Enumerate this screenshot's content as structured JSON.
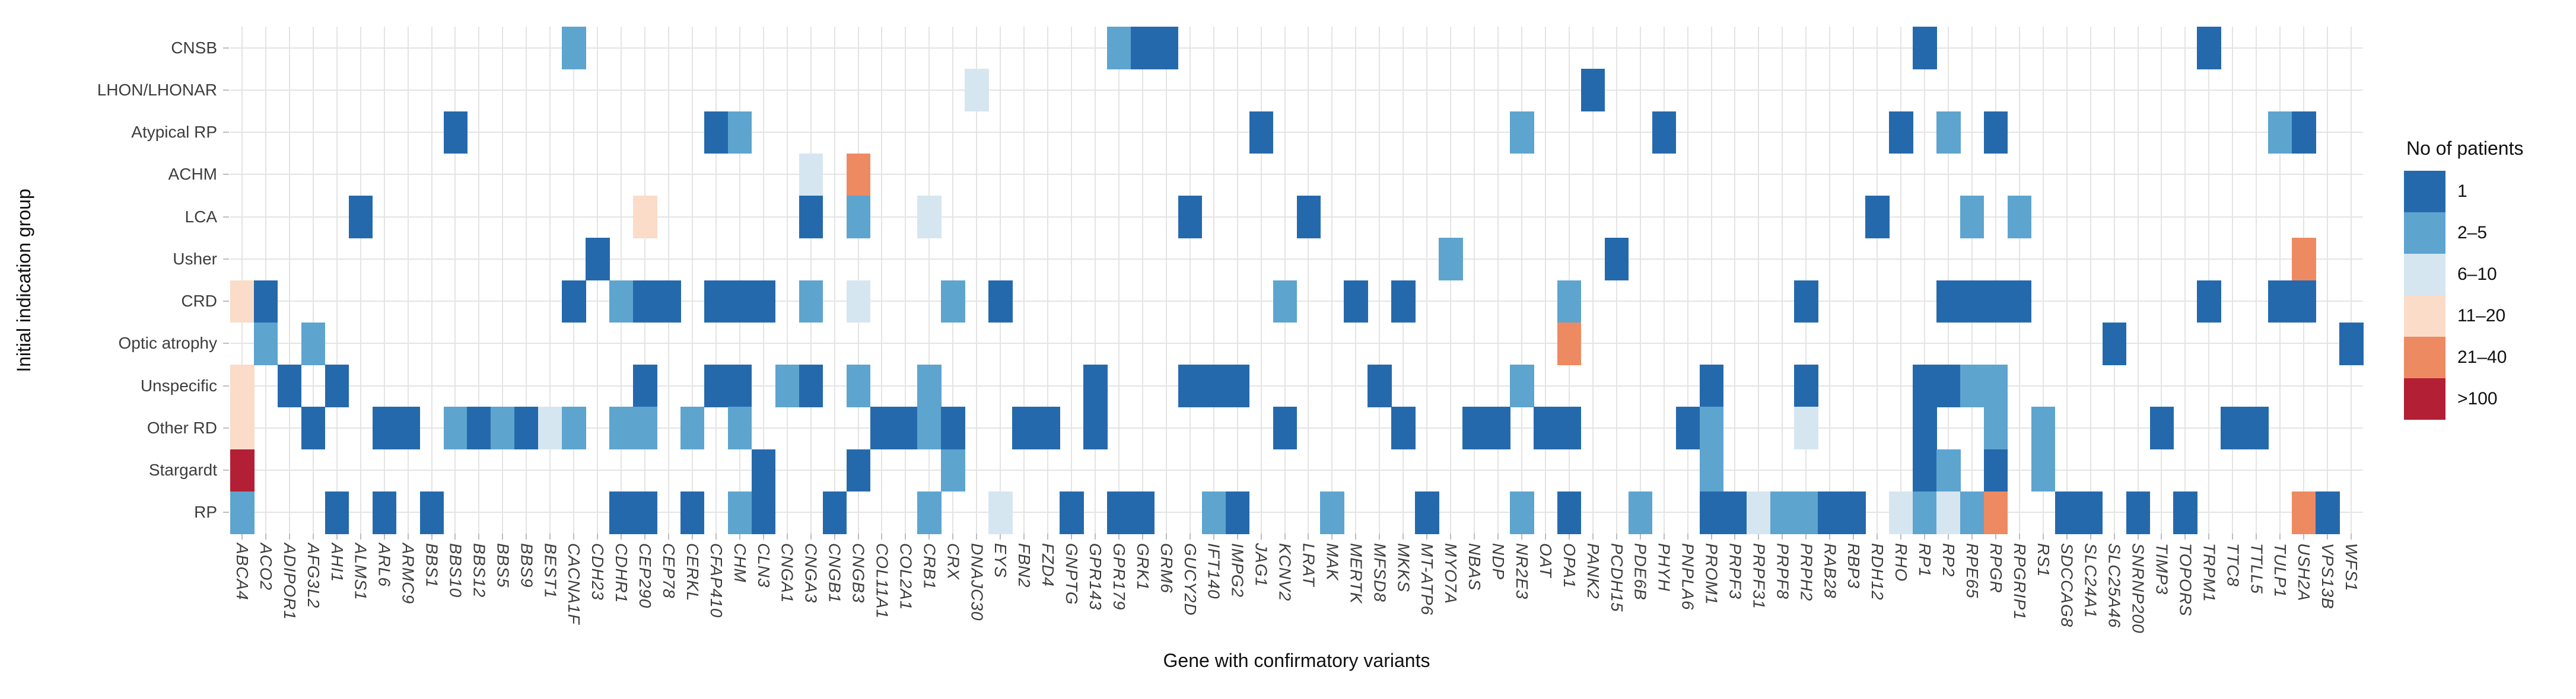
{
  "figure": {
    "xlabel": "Gene with confirmatory variants",
    "ylabel": "Initial indication group",
    "legend_title": "No of patients"
  },
  "chart_data": {
    "type": "heatmap",
    "title": "",
    "xlabel": "Gene with confirmatory variants",
    "ylabel": "Initial indication group",
    "grid": true,
    "legend_position": "right",
    "rows": [
      "CNSB",
      "LHON/LHONAR",
      "Atypical RP",
      "ACHM",
      "LCA",
      "Usher",
      "CRD",
      "Optic atrophy",
      "Unspecific",
      "Other RD",
      "Stargardt",
      "RP"
    ],
    "columns": [
      "ABCA4",
      "ACO2",
      "ADIPOR1",
      "AFG3L2",
      "AHI1",
      "ALMS1",
      "ARL6",
      "ARMC9",
      "BBS1",
      "BBS10",
      "BBS12",
      "BBS5",
      "BBS9",
      "BEST1",
      "CACNA1F",
      "CDH23",
      "CDHR1",
      "CEP290",
      "CEP78",
      "CERKL",
      "CFAP410",
      "CHM",
      "CLN3",
      "CNGA1",
      "CNGA3",
      "CNGB1",
      "CNGB3",
      "COL11A1",
      "COL2A1",
      "CRB1",
      "CRX",
      "DNAJC30",
      "EYS",
      "FBN2",
      "FZD4",
      "GNPTG",
      "GPR143",
      "GPR179",
      "GRK1",
      "GRM6",
      "GUCY2D",
      "IFT140",
      "IMPG2",
      "JAG1",
      "KCNV2",
      "LRAT",
      "MAK",
      "MERTK",
      "MFSD8",
      "MKKS",
      "MT-ATP6",
      "MYO7A",
      "NBAS",
      "NDP",
      "NR2E3",
      "OAT",
      "OPA1",
      "PANK2",
      "PCDH15",
      "PDE6B",
      "PHYH",
      "PNPLA6",
      "PROM1",
      "PRPF3",
      "PRPF31",
      "PRPF8",
      "PRPH2",
      "RAB28",
      "RBP3",
      "RDH12",
      "RHO",
      "RP1",
      "RP2",
      "RPE65",
      "RPGR",
      "RPGRIP1",
      "RS1",
      "SDCCAG8",
      "SLC24A1",
      "SLC25A46",
      "SNRNP200",
      "TIMP3",
      "TOPORS",
      "TRPM1",
      "TTC8",
      "TTLL5",
      "TULP1",
      "USH2A",
      "VPS13B",
      "WFS1"
    ],
    "legend": {
      "title": "No of patients",
      "categories": [
        "1",
        "2–5",
        "6–10",
        "11–20",
        "21–40",
        ">100"
      ],
      "colors": {
        "1": "#2569ad",
        "2–5": "#5da4cf",
        "6–10": "#d6e6f1",
        "11–20": "#fadcc8",
        "21–40": "#ee8a62",
        ">100": "#b31f34"
      }
    },
    "cells": [
      [
        "ABCA4",
        "CRD",
        "11–20"
      ],
      [
        "ABCA4",
        "Unspecific",
        "11–20"
      ],
      [
        "ABCA4",
        "Other RD",
        "11–20"
      ],
      [
        "ABCA4",
        "Stargardt",
        ">100"
      ],
      [
        "ABCA4",
        "RP",
        "2–5"
      ],
      [
        "ACO2",
        "CRD",
        "1"
      ],
      [
        "ACO2",
        "Optic atrophy",
        "2–5"
      ],
      [
        "ADIPOR1",
        "Unspecific",
        "1"
      ],
      [
        "AFG3L2",
        "Optic atrophy",
        "2–5"
      ],
      [
        "AFG3L2",
        "Other RD",
        "1"
      ],
      [
        "AHI1",
        "Unspecific",
        "1"
      ],
      [
        "AHI1",
        "RP",
        "1"
      ],
      [
        "ALMS1",
        "LCA",
        "1"
      ],
      [
        "ARL6",
        "Other RD",
        "1"
      ],
      [
        "ARL6",
        "RP",
        "1"
      ],
      [
        "ARMC9",
        "Other RD",
        "1"
      ],
      [
        "BBS1",
        "RP",
        "1"
      ],
      [
        "BBS10",
        "Atypical RP",
        "1"
      ],
      [
        "BBS10",
        "Other RD",
        "2–5"
      ],
      [
        "BBS12",
        "Other RD",
        "1"
      ],
      [
        "BBS5",
        "Other RD",
        "2–5"
      ],
      [
        "BBS9",
        "Other RD",
        "1"
      ],
      [
        "BEST1",
        "Other RD",
        "6–10"
      ],
      [
        "CACNA1F",
        "CNSB",
        "2–5"
      ],
      [
        "CACNA1F",
        "CRD",
        "1"
      ],
      [
        "CACNA1F",
        "Other RD",
        "2–5"
      ],
      [
        "CDH23",
        "Usher",
        "1"
      ],
      [
        "CDHR1",
        "CRD",
        "2–5"
      ],
      [
        "CDHR1",
        "Other RD",
        "2–5"
      ],
      [
        "CDHR1",
        "RP",
        "1"
      ],
      [
        "CEP290",
        "LCA",
        "11–20"
      ],
      [
        "CEP290",
        "CRD",
        "1"
      ],
      [
        "CEP290",
        "Unspecific",
        "1"
      ],
      [
        "CEP290",
        "Other RD",
        "2–5"
      ],
      [
        "CEP290",
        "RP",
        "1"
      ],
      [
        "CEP78",
        "CRD",
        "1"
      ],
      [
        "CERKL",
        "Other RD",
        "2–5"
      ],
      [
        "CERKL",
        "RP",
        "1"
      ],
      [
        "CFAP410",
        "Atypical RP",
        "1"
      ],
      [
        "CFAP410",
        "CRD",
        "1"
      ],
      [
        "CFAP410",
        "Unspecific",
        "1"
      ],
      [
        "CHM",
        "Atypical RP",
        "2–5"
      ],
      [
        "CHM",
        "CRD",
        "1"
      ],
      [
        "CHM",
        "Unspecific",
        "1"
      ],
      [
        "CHM",
        "Other RD",
        "2–5"
      ],
      [
        "CHM",
        "RP",
        "2–5"
      ],
      [
        "CLN3",
        "CRD",
        "1"
      ],
      [
        "CLN3",
        "Stargardt",
        "1"
      ],
      [
        "CLN3",
        "RP",
        "1"
      ],
      [
        "CNGA1",
        "Unspecific",
        "2–5"
      ],
      [
        "CNGA3",
        "ACHM",
        "6–10"
      ],
      [
        "CNGA3",
        "LCA",
        "1"
      ],
      [
        "CNGA3",
        "CRD",
        "2–5"
      ],
      [
        "CNGA3",
        "Unspecific",
        "1"
      ],
      [
        "CNGB1",
        "RP",
        "1"
      ],
      [
        "CNGB3",
        "ACHM",
        "21–40"
      ],
      [
        "CNGB3",
        "LCA",
        "2–5"
      ],
      [
        "CNGB3",
        "CRD",
        "6–10"
      ],
      [
        "CNGB3",
        "Unspecific",
        "2–5"
      ],
      [
        "CNGB3",
        "Stargardt",
        "1"
      ],
      [
        "COL11A1",
        "Other RD",
        "1"
      ],
      [
        "COL2A1",
        "Other RD",
        "1"
      ],
      [
        "CRB1",
        "LCA",
        "6–10"
      ],
      [
        "CRB1",
        "Unspecific",
        "2–5"
      ],
      [
        "CRB1",
        "Other RD",
        "2–5"
      ],
      [
        "CRB1",
        "RP",
        "2–5"
      ],
      [
        "CRX",
        "CRD",
        "2–5"
      ],
      [
        "CRX",
        "Other RD",
        "1"
      ],
      [
        "CRX",
        "Stargardt",
        "2–5"
      ],
      [
        "DNAJC30",
        "LHON/LHONAR",
        "6–10"
      ],
      [
        "EYS",
        "CRD",
        "1"
      ],
      [
        "EYS",
        "RP",
        "6–10"
      ],
      [
        "FBN2",
        "Other RD",
        "1"
      ],
      [
        "FZD4",
        "Other RD",
        "1"
      ],
      [
        "GNPTG",
        "RP",
        "1"
      ],
      [
        "GPR143",
        "Unspecific",
        "1"
      ],
      [
        "GPR143",
        "Other RD",
        "1"
      ],
      [
        "GPR179",
        "CNSB",
        "2–5"
      ],
      [
        "GPR179",
        "RP",
        "1"
      ],
      [
        "GRK1",
        "CNSB",
        "1"
      ],
      [
        "GRK1",
        "RP",
        "1"
      ],
      [
        "GRM6",
        "CNSB",
        "1"
      ],
      [
        "GUCY2D",
        "LCA",
        "1"
      ],
      [
        "GUCY2D",
        "Unspecific",
        "1"
      ],
      [
        "IFT140",
        "Unspecific",
        "1"
      ],
      [
        "IFT140",
        "RP",
        "2–5"
      ],
      [
        "IMPG2",
        "Unspecific",
        "1"
      ],
      [
        "IMPG2",
        "RP",
        "1"
      ],
      [
        "JAG1",
        "Atypical RP",
        "1"
      ],
      [
        "KCNV2",
        "CRD",
        "2–5"
      ],
      [
        "KCNV2",
        "Other RD",
        "1"
      ],
      [
        "LRAT",
        "LCA",
        "1"
      ],
      [
        "MAK",
        "RP",
        "2–5"
      ],
      [
        "MERTK",
        "CRD",
        "1"
      ],
      [
        "MFSD8",
        "Unspecific",
        "1"
      ],
      [
        "MKKS",
        "CRD",
        "1"
      ],
      [
        "MKKS",
        "Other RD",
        "1"
      ],
      [
        "MT-ATP6",
        "RP",
        "1"
      ],
      [
        "MYO7A",
        "Usher",
        "2–5"
      ],
      [
        "NBAS",
        "Other RD",
        "1"
      ],
      [
        "NDP",
        "Other RD",
        "1"
      ],
      [
        "NR2E3",
        "Atypical RP",
        "2–5"
      ],
      [
        "NR2E3",
        "Unspecific",
        "2–5"
      ],
      [
        "NR2E3",
        "RP",
        "2–5"
      ],
      [
        "OAT",
        "Other RD",
        "1"
      ],
      [
        "OPA1",
        "CRD",
        "2–5"
      ],
      [
        "OPA1",
        "Optic atrophy",
        "21–40"
      ],
      [
        "OPA1",
        "Other RD",
        "1"
      ],
      [
        "OPA1",
        "RP",
        "1"
      ],
      [
        "PANK2",
        "LHON/LHONAR",
        "1"
      ],
      [
        "PCDH15",
        "Usher",
        "1"
      ],
      [
        "PDE6B",
        "RP",
        "2–5"
      ],
      [
        "PHYH",
        "Atypical RP",
        "1"
      ],
      [
        "PNPLA6",
        "Other RD",
        "1"
      ],
      [
        "PROM1",
        "Unspecific",
        "1"
      ],
      [
        "PROM1",
        "Other RD",
        "2–5"
      ],
      [
        "PROM1",
        "Stargardt",
        "2–5"
      ],
      [
        "PROM1",
        "RP",
        "1"
      ],
      [
        "PRPF3",
        "RP",
        "1"
      ],
      [
        "PRPF31",
        "RP",
        "6–10"
      ],
      [
        "PRPF8",
        "RP",
        "2–5"
      ],
      [
        "PRPH2",
        "CRD",
        "1"
      ],
      [
        "PRPH2",
        "Unspecific",
        "1"
      ],
      [
        "PRPH2",
        "Other RD",
        "6–10"
      ],
      [
        "PRPH2",
        "RP",
        "2–5"
      ],
      [
        "RAB28",
        "RP",
        "1"
      ],
      [
        "RBP3",
        "RP",
        "1"
      ],
      [
        "RDH12",
        "LCA",
        "1"
      ],
      [
        "RHO",
        "Atypical RP",
        "1"
      ],
      [
        "RHO",
        "RP",
        "6–10"
      ],
      [
        "RP1",
        "CNSB",
        "1"
      ],
      [
        "RP1",
        "Unspecific",
        "1"
      ],
      [
        "RP1",
        "Other RD",
        "1"
      ],
      [
        "RP1",
        "Stargardt",
        "1"
      ],
      [
        "RP1",
        "RP",
        "2–5"
      ],
      [
        "RP2",
        "Atypical RP",
        "2–5"
      ],
      [
        "RP2",
        "CRD",
        "1"
      ],
      [
        "RP2",
        "Unspecific",
        "1"
      ],
      [
        "RP2",
        "Stargardt",
        "2–5"
      ],
      [
        "RP2",
        "RP",
        "6–10"
      ],
      [
        "RPE65",
        "LCA",
        "2–5"
      ],
      [
        "RPE65",
        "CRD",
        "1"
      ],
      [
        "RPE65",
        "Unspecific",
        "2–5"
      ],
      [
        "RPE65",
        "RP",
        "2–5"
      ],
      [
        "RPGR",
        "Atypical RP",
        "1"
      ],
      [
        "RPGR",
        "CRD",
        "1"
      ],
      [
        "RPGR",
        "Unspecific",
        "2–5"
      ],
      [
        "RPGR",
        "Other RD",
        "2–5"
      ],
      [
        "RPGR",
        "Stargardt",
        "1"
      ],
      [
        "RPGR",
        "RP",
        "21–40"
      ],
      [
        "RPGRIP1",
        "LCA",
        "2–5"
      ],
      [
        "RPGRIP1",
        "CRD",
        "1"
      ],
      [
        "RS1",
        "Other RD",
        "2–5"
      ],
      [
        "RS1",
        "Stargardt",
        "2–5"
      ],
      [
        "SDCCAG8",
        "RP",
        "1"
      ],
      [
        "SLC24A1",
        "RP",
        "1"
      ],
      [
        "SLC25A46",
        "Optic atrophy",
        "1"
      ],
      [
        "SNRNP200",
        "RP",
        "1"
      ],
      [
        "TIMP3",
        "Other RD",
        "1"
      ],
      [
        "TOPORS",
        "RP",
        "1"
      ],
      [
        "TRPM1",
        "CNSB",
        "1"
      ],
      [
        "TRPM1",
        "CRD",
        "1"
      ],
      [
        "TTC8",
        "Other RD",
        "1"
      ],
      [
        "TTLL5",
        "Other RD",
        "1"
      ],
      [
        "TULP1",
        "Atypical RP",
        "2–5"
      ],
      [
        "TULP1",
        "CRD",
        "1"
      ],
      [
        "USH2A",
        "Atypical RP",
        "1"
      ],
      [
        "USH2A",
        "Usher",
        "21–40"
      ],
      [
        "USH2A",
        "CRD",
        "1"
      ],
      [
        "USH2A",
        "RP",
        "21–40"
      ],
      [
        "VPS13B",
        "RP",
        "1"
      ],
      [
        "WFS1",
        "Optic atrophy",
        "1"
      ]
    ]
  }
}
